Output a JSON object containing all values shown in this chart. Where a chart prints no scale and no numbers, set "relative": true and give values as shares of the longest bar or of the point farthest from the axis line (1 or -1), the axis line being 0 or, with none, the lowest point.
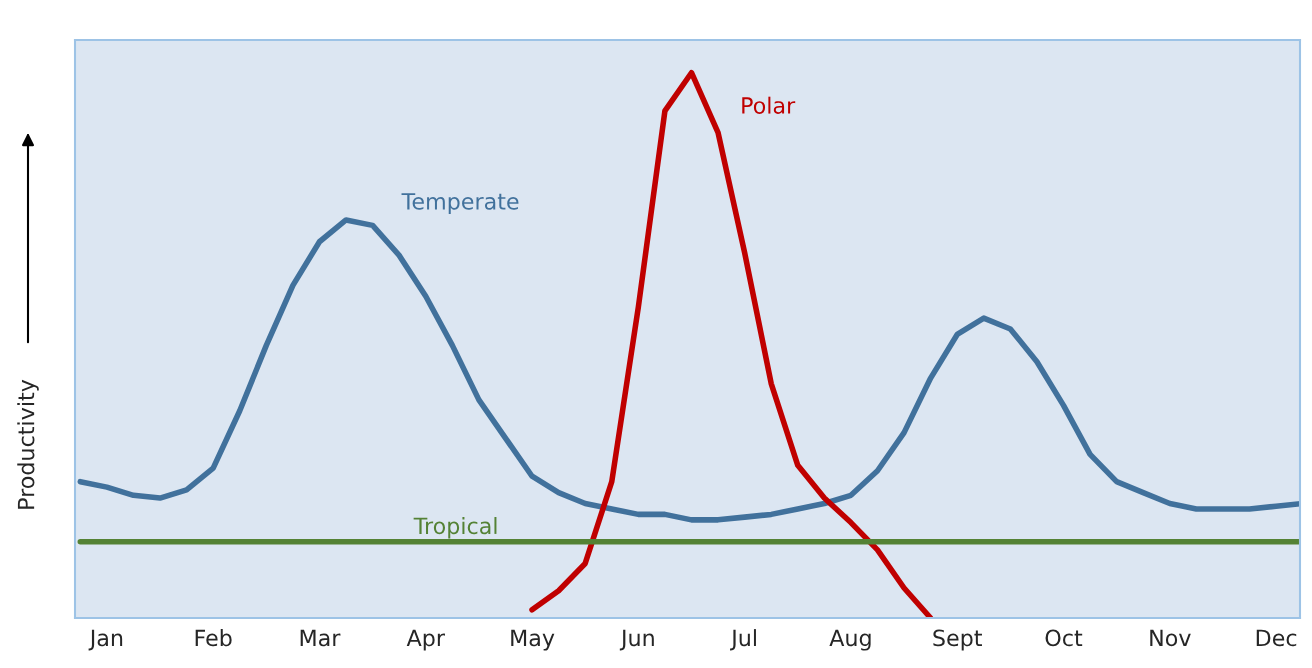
{
  "chart_data": {
    "type": "line",
    "relative": true,
    "ylabel": "Productivity",
    "categories": [
      null,
      "Jan",
      null,
      null,
      null,
      "Feb",
      null,
      null,
      null,
      "Mar",
      null,
      null,
      null,
      "Apr",
      null,
      null,
      null,
      "May",
      null,
      null,
      null,
      "Jun",
      null,
      null,
      null,
      "Jul",
      null,
      null,
      null,
      "Aug",
      null,
      null,
      null,
      "Sept",
      null,
      null,
      null,
      "Oct",
      null,
      null,
      null,
      "Nov",
      null,
      null,
      null,
      "Dec",
      null
    ],
    "grid": false,
    "legend": false,
    "series": [
      {
        "name": "Temperate",
        "color": "#41719c",
        "values": [
          0.25,
          0.24,
          0.225,
          0.22,
          0.235,
          0.275,
          0.38,
          0.5,
          0.61,
          0.69,
          0.73,
          0.72,
          0.665,
          0.59,
          0.5,
          0.4,
          0.33,
          0.26,
          0.23,
          0.21,
          0.2,
          0.19,
          0.19,
          0.18,
          0.18,
          0.185,
          0.19,
          0.2,
          0.21,
          0.225,
          0.27,
          0.34,
          0.44,
          0.52,
          0.55,
          0.53,
          0.47,
          0.39,
          0.3,
          0.25,
          0.23,
          0.21,
          0.2,
          0.2,
          0.2,
          0.205,
          0.21
        ]
      },
      {
        "name": "Polar",
        "color": "#c00000",
        "values": [
          null,
          null,
          null,
          null,
          null,
          null,
          null,
          null,
          null,
          null,
          null,
          null,
          null,
          null,
          null,
          null,
          null,
          0.015,
          0.05,
          0.1,
          0.25,
          0.57,
          0.93,
          1.0,
          0.89,
          0.67,
          0.43,
          0.28,
          0.22,
          0.175,
          0.125,
          0.055,
          0.0,
          null,
          null,
          null,
          null,
          null,
          null,
          null,
          null,
          null,
          null,
          null,
          null,
          null,
          null
        ]
      },
      {
        "name": "Tropical",
        "color": "#548235",
        "values": [
          0.14,
          0.14,
          0.14,
          0.14,
          0.14,
          0.14,
          0.14,
          0.14,
          0.14,
          0.14,
          0.14,
          0.14,
          0.14,
          0.14,
          0.14,
          0.14,
          0.14,
          0.14,
          0.14,
          0.14,
          0.14,
          0.14,
          0.14,
          0.14,
          0.14,
          0.14,
          0.14,
          0.14,
          0.14,
          0.14,
          0.14,
          0.14,
          0.14,
          0.14,
          0.14,
          0.14,
          0.14,
          0.14,
          0.14,
          0.14,
          0.14,
          0.14,
          0.14,
          0.14,
          0.14,
          0.14,
          0.14
        ]
      }
    ]
  }
}
